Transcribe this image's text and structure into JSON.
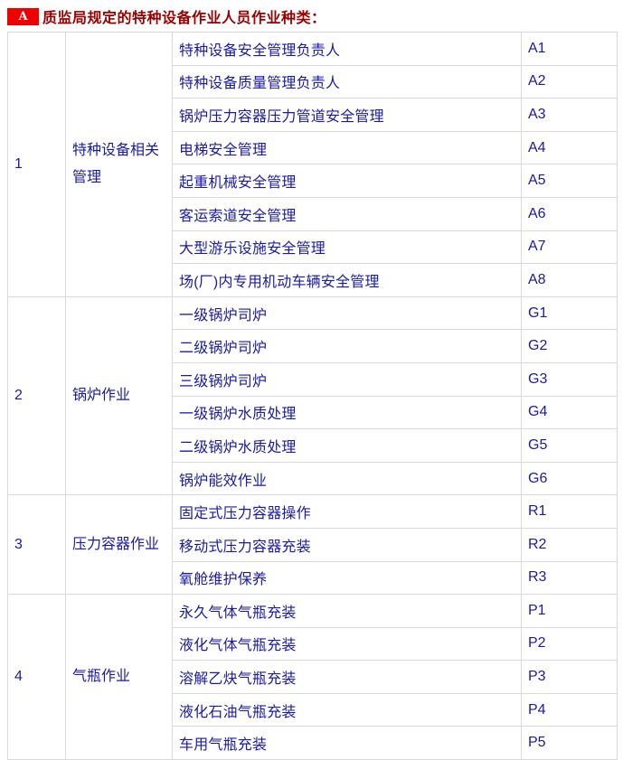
{
  "page": {
    "badge": "A",
    "title": "质监局规定的特种设备作业人员作业种类："
  },
  "colors": {
    "badge_bg": "#ee0000",
    "badge_text": "#ffffff",
    "title_text": "#990000",
    "table_text": "#1a1aa8",
    "table_border": "#d9d9d9"
  },
  "table": {
    "groups": [
      {
        "no": "1",
        "category": "特种设备相关管理",
        "rows": [
          {
            "job": "特种设备安全管理负责人",
            "code": "A1"
          },
          {
            "job": "特种设备质量管理负责人",
            "code": "A2"
          },
          {
            "job": "锅炉压力容器压力管道安全管理",
            "code": "A3"
          },
          {
            "job": "电梯安全管理",
            "code": "A4"
          },
          {
            "job": "起重机械安全管理",
            "code": "A5"
          },
          {
            "job": "客运索道安全管理",
            "code": "A6"
          },
          {
            "job": "大型游乐设施安全管理",
            "code": "A7"
          },
          {
            "job": "场(厂)内专用机动车辆安全管理",
            "code": "A8"
          }
        ]
      },
      {
        "no": "2",
        "category": "锅炉作业",
        "rows": [
          {
            "job": "一级锅炉司炉",
            "code": "G1"
          },
          {
            "job": "二级锅炉司炉",
            "code": "G2"
          },
          {
            "job": "三级锅炉司炉",
            "code": "G3"
          },
          {
            "job": "一级锅炉水质处理",
            "code": "G4"
          },
          {
            "job": "二级锅炉水质处理",
            "code": "G5"
          },
          {
            "job": "锅炉能效作业",
            "code": "G6"
          }
        ]
      },
      {
        "no": "3",
        "category": "压力容器作业",
        "rows": [
          {
            "job": "固定式压力容器操作",
            "code": "R1"
          },
          {
            "job": "移动式压力容器充装",
            "code": "R2"
          },
          {
            "job": "氧舱维护保养",
            "code": "R3"
          }
        ]
      },
      {
        "no": "4",
        "category": "气瓶作业",
        "rows": [
          {
            "job": "永久气体气瓶充装",
            "code": "P1"
          },
          {
            "job": "液化气体气瓶充装",
            "code": "P2"
          },
          {
            "job": "溶解乙炔气瓶充装",
            "code": "P3"
          },
          {
            "job": "液化石油气瓶充装",
            "code": "P4"
          },
          {
            "job": "车用气瓶充装",
            "code": "P5"
          }
        ]
      }
    ]
  }
}
